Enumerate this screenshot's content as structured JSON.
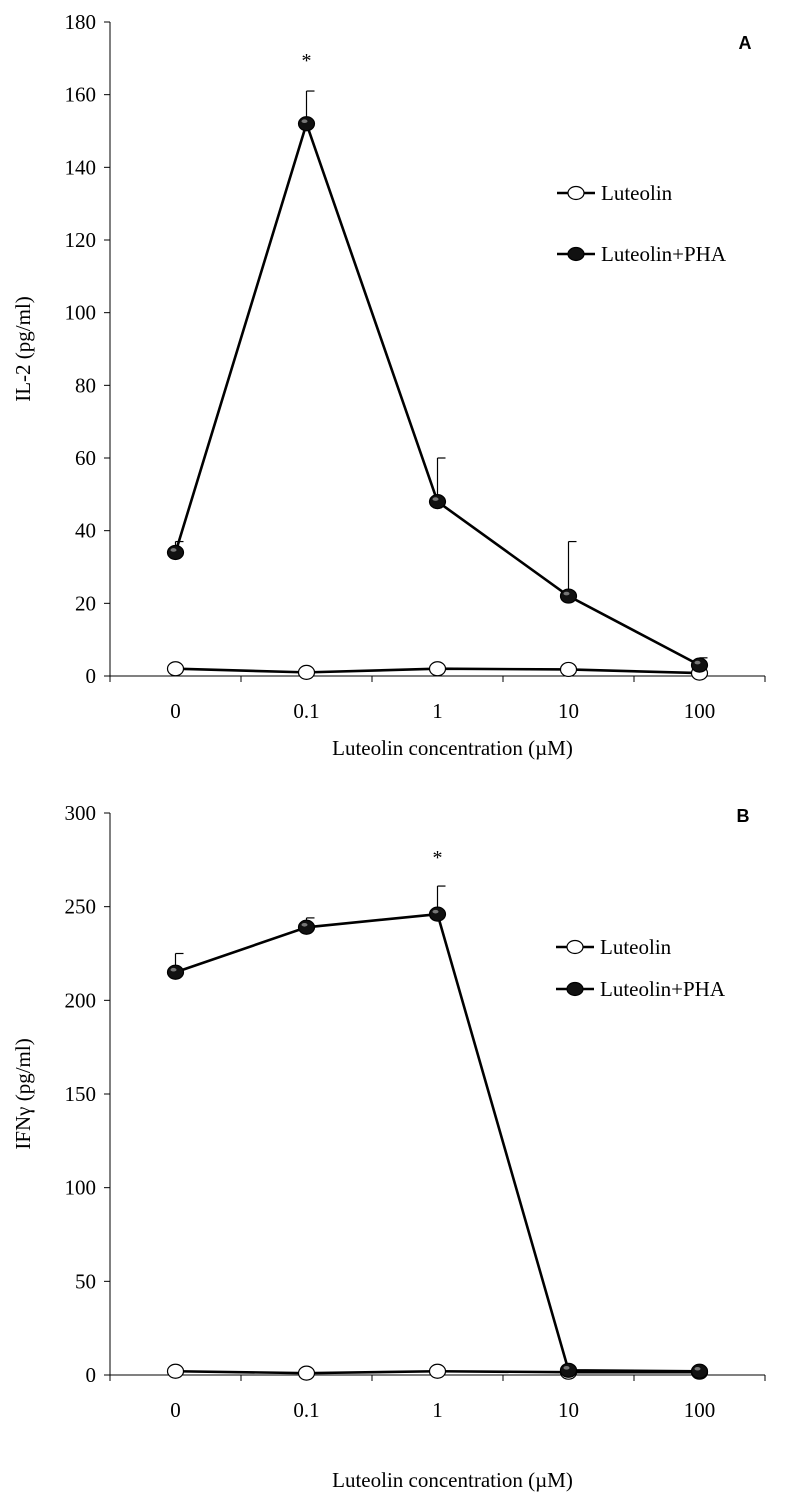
{
  "chart_data": [
    {
      "type": "line",
      "panel_label": "A",
      "categories": [
        "0",
        "0.1",
        "1",
        "10",
        "100"
      ],
      "ylabel": "IL-2 (pg/ml)",
      "xlabel": "Luteolin concentration (µM)",
      "ylim": [
        0,
        180
      ],
      "yticks": [
        "0",
        "20",
        "40",
        "60",
        "80",
        "100",
        "120",
        "140",
        "160",
        "180"
      ],
      "legend_position": "right",
      "series": [
        {
          "name": "Luteolin",
          "marker": "open-circle",
          "values": [
            2,
            1,
            2,
            1.8,
            0.8
          ]
        },
        {
          "name": "Luteolin+PHA",
          "marker": "filled-circle",
          "values": [
            34,
            152,
            48,
            22,
            3
          ],
          "errors": [
            3,
            9,
            12,
            15,
            2
          ]
        }
      ],
      "annotations": [
        {
          "category_index": 1,
          "text": "*"
        }
      ]
    },
    {
      "type": "line",
      "panel_label": "B",
      "categories": [
        "0",
        "0.1",
        "1",
        "10",
        "100"
      ],
      "ylabel": "IFNγ (pg/ml)",
      "xlabel": "Luteolin concentration (µM)",
      "ylim": [
        0,
        300
      ],
      "yticks": [
        "0",
        "50",
        "100",
        "150",
        "200",
        "250",
        "300"
      ],
      "legend_position": "right",
      "series": [
        {
          "name": "Luteolin",
          "marker": "open-circle",
          "values": [
            2,
            1,
            2,
            1.5,
            1.5
          ]
        },
        {
          "name": "Luteolin+PHA",
          "marker": "filled-circle",
          "values": [
            215,
            239,
            246,
            2.5,
            2
          ],
          "errors": [
            10,
            5,
            15,
            0,
            0
          ]
        }
      ],
      "annotations": [
        {
          "category_index": 2,
          "text": "*"
        }
      ]
    }
  ]
}
